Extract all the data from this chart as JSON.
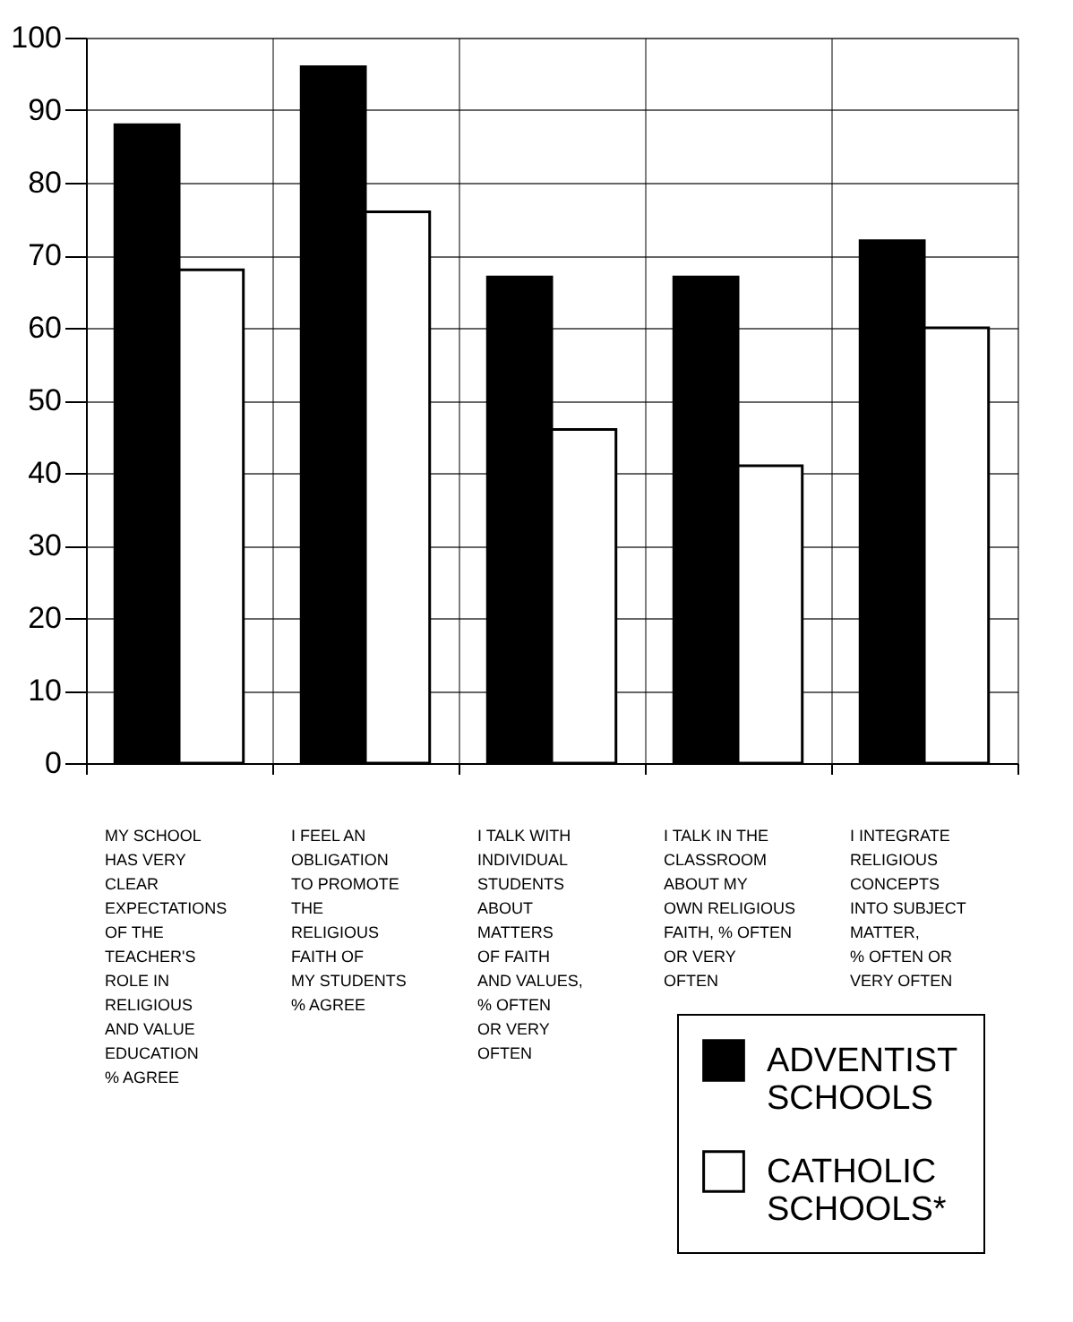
{
  "chart_data": {
    "type": "bar",
    "categories": [
      "MY SCHOOL\nHAS VERY\nCLEAR\nEXPECTATIONS\nOF THE\nTEACHER'S\nROLE IN\nRELIGIOUS\nAND VALUE\nEDUCATION\n% AGREE",
      "I FEEL AN\nOBLIGATION\nTO PROMOTE\nTHE\nRELIGIOUS\nFAITH OF\nMY STUDENTS\n% AGREE",
      "I TALK WITH\nINDIVIDUAL\nSTUDENTS\nABOUT\nMATTERS\nOF FAITH\nAND VALUES,\n% OFTEN\nOR VERY\nOFTEN",
      "I TALK IN THE\nCLASSROOM\nABOUT MY\nOWN RELIGIOUS\nFAITH, % OFTEN\nOR VERY\nOFTEN",
      "I INTEGRATE\nRELIGIOUS\nCONCEPTS\nINTO SUBJECT\nMATTER,\n% OFTEN OR\nVERY OFTEN"
    ],
    "series": [
      {
        "name": "ADVENTIST SCHOOLS",
        "color": "#000000",
        "values": [
          88,
          96,
          67,
          67,
          72
        ]
      },
      {
        "name": "CATHOLIC SCHOOLS*",
        "color": "#ffffff",
        "values": [
          68,
          76,
          46,
          41,
          60
        ]
      }
    ],
    "ylim": [
      0,
      100
    ],
    "yticks": [
      0,
      10,
      20,
      30,
      40,
      50,
      60,
      70,
      80,
      90,
      100
    ],
    "grid": true,
    "legend": "bottom right"
  }
}
